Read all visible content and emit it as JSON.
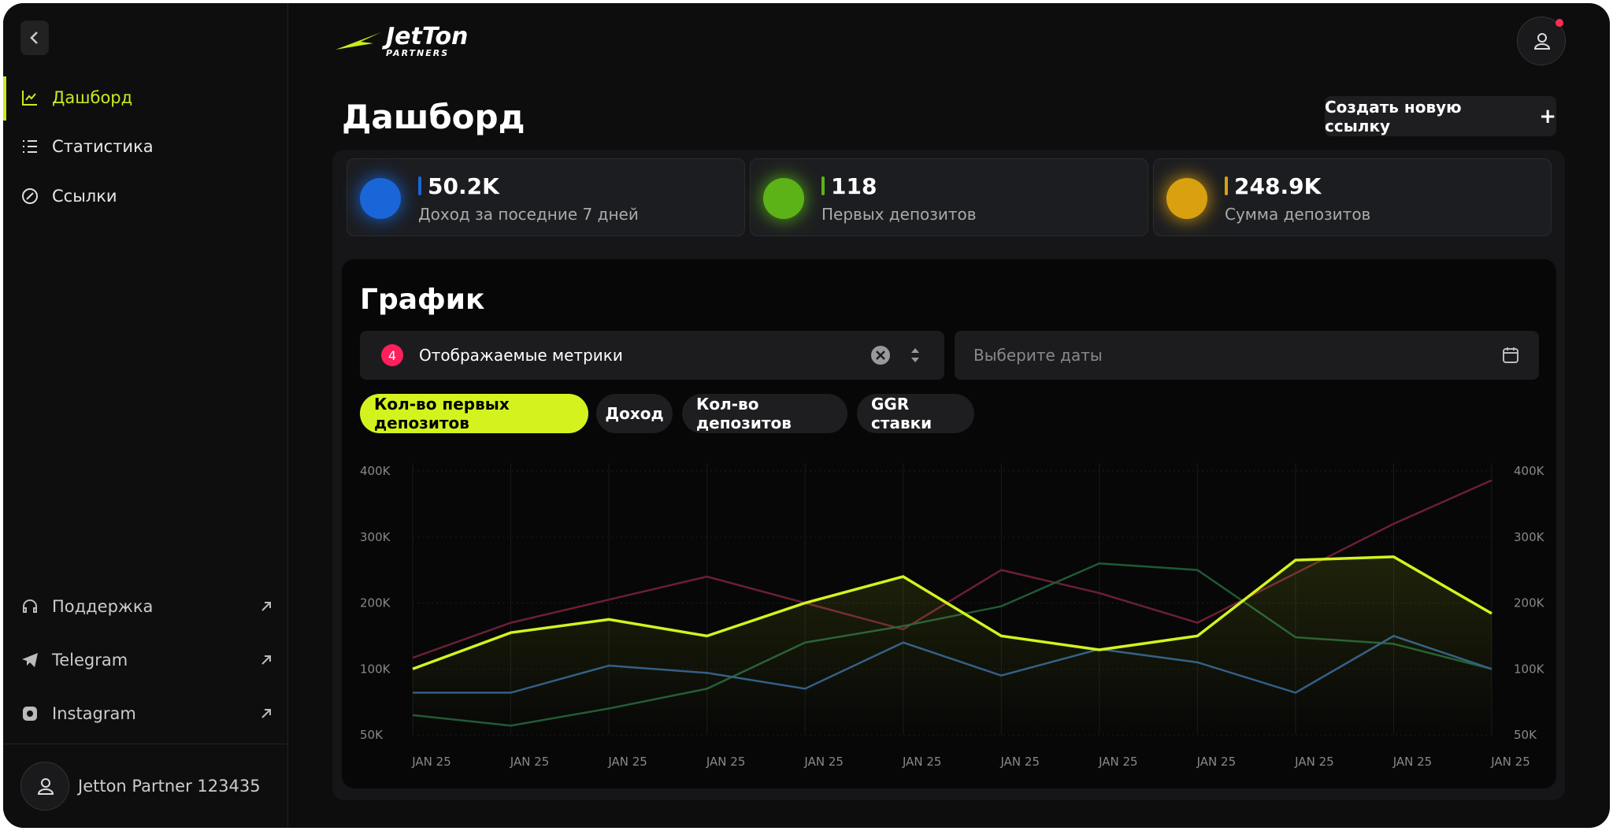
{
  "sidebar": {
    "nav": [
      "Дашборд",
      "Статистика",
      "Ссылки"
    ],
    "links": [
      "Поддержка",
      "Telegram",
      "Instagram"
    ],
    "user": "Jetton Partner 123435"
  },
  "header": {
    "logo": "JetTon",
    "logo_sub": "PARTNERS",
    "title": "Дашборд",
    "button": "Создать новую ссылку"
  },
  "stats": [
    {
      "value": "50.2K",
      "label": "Доход за поседние 7 дней"
    },
    {
      "value": "118",
      "label": "Первых депозитов"
    },
    {
      "value": "248.9K",
      "label": "Сумма депозитов"
    }
  ],
  "panel": {
    "title": "График",
    "metrics_count": 4,
    "metrics": "Отображаемые метрики",
    "dates": "Выберите даты"
  },
  "chart_data": {
    "type": "line",
    "categories": [
      "JAN 25",
      "JAN 25",
      "JAN 25",
      "JAN 25",
      "JAN 25",
      "JAN 25",
      "JAN 25",
      "JAN 25",
      "JAN 25",
      "JAN 25",
      "JAN 25",
      "JAN 25"
    ],
    "series": [
      {
        "name": "Кол-во первых депозитов",
        "color": "#d4f31e",
        "values": [
          100000,
          155000,
          175000,
          150000,
          200000,
          240000,
          150000,
          129000,
          150000,
          265000,
          270000,
          184000
        ]
      },
      {
        "name": "Доход",
        "color": "#2c5a8c",
        "values": [
          82000,
          82000,
          105000,
          97000,
          85000,
          140000,
          95000,
          130000,
          110000,
          82000,
          150000,
          100000
        ]
      },
      {
        "name": "Кол-во депозитов",
        "color": "#1f5a36",
        "values": [
          65000,
          57000,
          70000,
          85000,
          140000,
          165000,
          195000,
          260000,
          250000,
          148000,
          138000,
          100000
        ]
      },
      {
        "name": "GGR ставки",
        "color": "#6b1f33",
        "values": [
          117000,
          170000,
          205000,
          240000,
          200000,
          160000,
          250000,
          215000,
          170000,
          245000,
          320000,
          386000
        ]
      }
    ],
    "ylim": [
      50000,
      400000
    ],
    "yticks": [
      {
        "value": 50000,
        "label": "50K"
      },
      {
        "value": 100000,
        "label": "100K"
      },
      {
        "value": 200000,
        "label": "200K"
      },
      {
        "value": 300000,
        "label": "300K"
      },
      {
        "value": 400000,
        "label": "400K"
      }
    ],
    "y2lim": [
      50000,
      400000
    ],
    "y2ticks": [
      {
        "value": 50000,
        "label": "50K"
      },
      {
        "value": 100000,
        "label": "100K"
      },
      {
        "value": 200000,
        "label": "200K"
      },
      {
        "value": 300000,
        "label": "300K"
      },
      {
        "value": 400000,
        "label": "400K"
      }
    ],
    "grid": true
  }
}
